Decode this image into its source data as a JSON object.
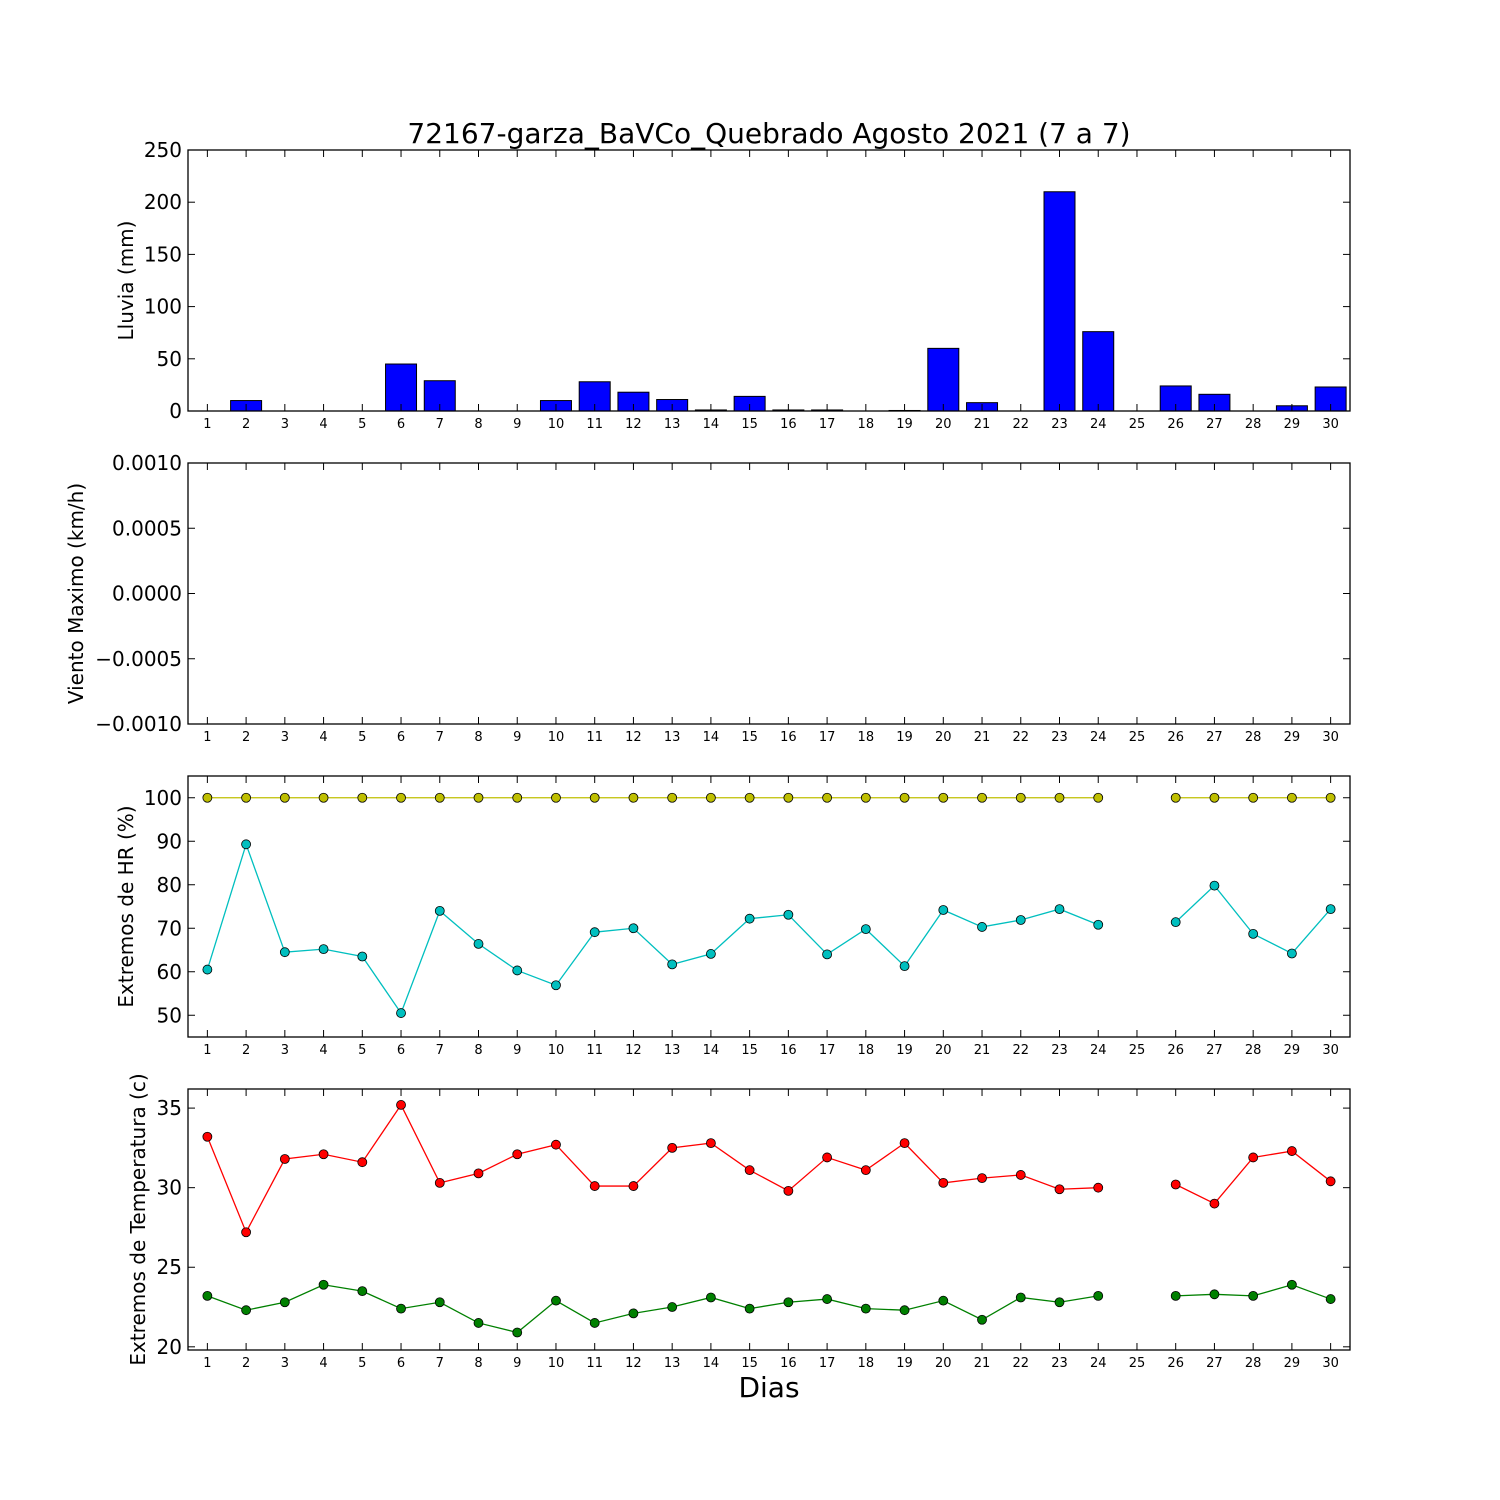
{
  "title": "72167-garza_BaVCo_Quebrado Agosto 2021  (7 a 7)",
  "xlabel": "Dias",
  "days": [
    "1",
    "2",
    "3",
    "4",
    "5",
    "6",
    "7",
    "8",
    "9",
    "10",
    "11",
    "12",
    "13",
    "14",
    "15",
    "16",
    "17",
    "18",
    "19",
    "20",
    "21",
    "22",
    "23",
    "24",
    "25",
    "26",
    "27",
    "28",
    "29",
    "30"
  ],
  "chart_data": [
    {
      "type": "bar",
      "ylabel": "Lluvia (mm)",
      "ylim": [
        0,
        250
      ],
      "yticks": [
        0,
        50,
        100,
        150,
        200,
        250
      ],
      "ytick_labels": [
        "0",
        "50",
        "100",
        "150",
        "200",
        "250"
      ],
      "categories": [
        "1",
        "2",
        "3",
        "4",
        "5",
        "6",
        "7",
        "8",
        "9",
        "10",
        "11",
        "12",
        "13",
        "14",
        "15",
        "16",
        "17",
        "18",
        "19",
        "20",
        "21",
        "22",
        "23",
        "24",
        "25",
        "26",
        "27",
        "28",
        "29",
        "30"
      ],
      "series": [
        {
          "color": "#0000ff",
          "values": [
            0,
            10,
            0,
            0,
            0,
            45,
            29,
            0,
            0,
            10,
            28,
            18,
            11,
            1,
            14,
            1,
            1,
            0,
            0.5,
            60,
            8,
            0,
            210,
            76,
            0,
            24,
            16,
            0,
            5,
            23
          ]
        }
      ]
    },
    {
      "type": "line",
      "ylabel": "Viento Maximo (km/h)",
      "ylim": [
        -0.001,
        0.001
      ],
      "yticks": [
        -0.001,
        -0.0005,
        0,
        0.0005,
        0.001
      ],
      "ytick_labels": [
        "−0.0010",
        "−0.0005",
        "0.0000",
        "0.0005",
        "0.0010"
      ],
      "categories": [
        "1",
        "2",
        "3",
        "4",
        "5",
        "6",
        "7",
        "8",
        "9",
        "10",
        "11",
        "12",
        "13",
        "14",
        "15",
        "16",
        "17",
        "18",
        "19",
        "20",
        "21",
        "22",
        "23",
        "24",
        "25",
        "26",
        "27",
        "28",
        "29",
        "30"
      ],
      "series": []
    },
    {
      "type": "line",
      "ylabel": "Extremos de HR (%)",
      "ylim": [
        45,
        105
      ],
      "yticks": [
        50,
        60,
        70,
        80,
        90,
        100
      ],
      "ytick_labels": [
        "50",
        "60",
        "70",
        "80",
        "90",
        "100"
      ],
      "categories": [
        "1",
        "2",
        "3",
        "4",
        "5",
        "6",
        "7",
        "8",
        "9",
        "10",
        "11",
        "12",
        "13",
        "14",
        "15",
        "16",
        "17",
        "18",
        "19",
        "20",
        "21",
        "22",
        "23",
        "24",
        "25",
        "26",
        "27",
        "28",
        "29",
        "30"
      ],
      "series": [
        {
          "color": "#bfbf00",
          "values": [
            100,
            100,
            100,
            100,
            100,
            100,
            100,
            100,
            100,
            100,
            100,
            100,
            100,
            100,
            100,
            100,
            100,
            100,
            100,
            100,
            100,
            100,
            100,
            100,
            null,
            100,
            100,
            100,
            100,
            100
          ]
        },
        {
          "color": "#00bfbf",
          "values": [
            60.5,
            89.3,
            64.5,
            65.2,
            63.5,
            50.5,
            74,
            66.4,
            60.3,
            56.9,
            69.1,
            70,
            61.7,
            64.1,
            72.2,
            73.1,
            64,
            69.8,
            61.3,
            74.2,
            70.3,
            71.9,
            74.4,
            70.8,
            null,
            71.4,
            79.8,
            68.7,
            64.2,
            74.4
          ]
        }
      ]
    },
    {
      "type": "line",
      "ylabel": "Extremos de Temperatura (c)",
      "ylim": [
        19.8,
        36.2
      ],
      "yticks": [
        20,
        25,
        30,
        35
      ],
      "ytick_labels": [
        "20",
        "25",
        "30",
        "35"
      ],
      "categories": [
        "1",
        "2",
        "3",
        "4",
        "5",
        "6",
        "7",
        "8",
        "9",
        "10",
        "11",
        "12",
        "13",
        "14",
        "15",
        "16",
        "17",
        "18",
        "19",
        "20",
        "21",
        "22",
        "23",
        "24",
        "25",
        "26",
        "27",
        "28",
        "29",
        "30"
      ],
      "series": [
        {
          "color": "#ff0000",
          "values": [
            33.2,
            27.2,
            31.8,
            32.1,
            31.6,
            35.2,
            30.3,
            30.9,
            32.1,
            32.7,
            30.1,
            30.1,
            32.5,
            32.8,
            31.1,
            29.8,
            31.9,
            31.1,
            32.8,
            30.3,
            30.6,
            30.8,
            29.9,
            30,
            null,
            30.2,
            29,
            31.9,
            32.3,
            30.4
          ]
        },
        {
          "color": "#008000",
          "values": [
            23.2,
            22.3,
            22.8,
            23.9,
            23.5,
            22.4,
            22.8,
            21.5,
            20.9,
            22.9,
            21.5,
            22.1,
            22.5,
            23.1,
            22.4,
            22.8,
            23,
            22.4,
            22.3,
            22.9,
            21.7,
            23.1,
            22.8,
            23.2,
            null,
            23.2,
            23.3,
            23.2,
            23.9,
            23
          ]
        }
      ]
    }
  ]
}
